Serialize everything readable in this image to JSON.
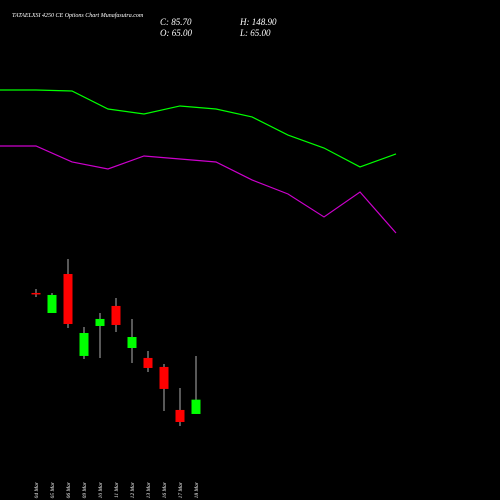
{
  "chart_data": {
    "type": "candlestick",
    "title": "TATAELXSI 4250 CE Options Chart Munafasutra.com",
    "ohlc_labels": {
      "close": "C: 85.70",
      "open": "O: 65.00",
      "high": "H: 148.90",
      "low": "L: 65.00"
    },
    "categories": [
      "04 Mar",
      "05 Mar",
      "06 Mar",
      "09 Mar",
      "10 Mar",
      "11 Mar",
      "12 Mar",
      "13 Mar",
      "16 Mar",
      "17 Mar",
      "18 Mar"
    ],
    "open": [
      240.0,
      211.0,
      267.4,
      148.9,
      192.2,
      221.2,
      160.4,
      146.0,
      133.0,
      70.8,
      65.0
    ],
    "high": [
      245.7,
      240.0,
      289.1,
      190.8,
      211.0,
      232.7,
      202.4,
      156.1,
      137.3,
      102.6,
      148.9
    ],
    "low": [
      234.2,
      211.0,
      189.4,
      144.5,
      146.0,
      183.6,
      138.7,
      125.7,
      69.3,
      47.6,
      65.0
    ],
    "close": [
      238.5,
      237.1,
      195.1,
      182.1,
      202.4,
      193.7,
      176.3,
      131.5,
      101.2,
      53.4,
      85.7
    ],
    "up_color": "#00ff00",
    "down_color": "#ff0000",
    "lines": [
      {
        "color": "#00ff00",
        "values": [
          533.5,
          532.1,
          506.0,
          498.8,
          510.4,
          506.0,
          494.5,
          468.4,
          449.6,
          422.2,
          441.0
        ]
      },
      {
        "color": "#cc00cc",
        "values": [
          452.5,
          429.4,
          419.3,
          438.1,
          433.7,
          429.4,
          403.4,
          383.1,
          349.9,
          386.0,
          326.7
        ]
      }
    ]
  }
}
